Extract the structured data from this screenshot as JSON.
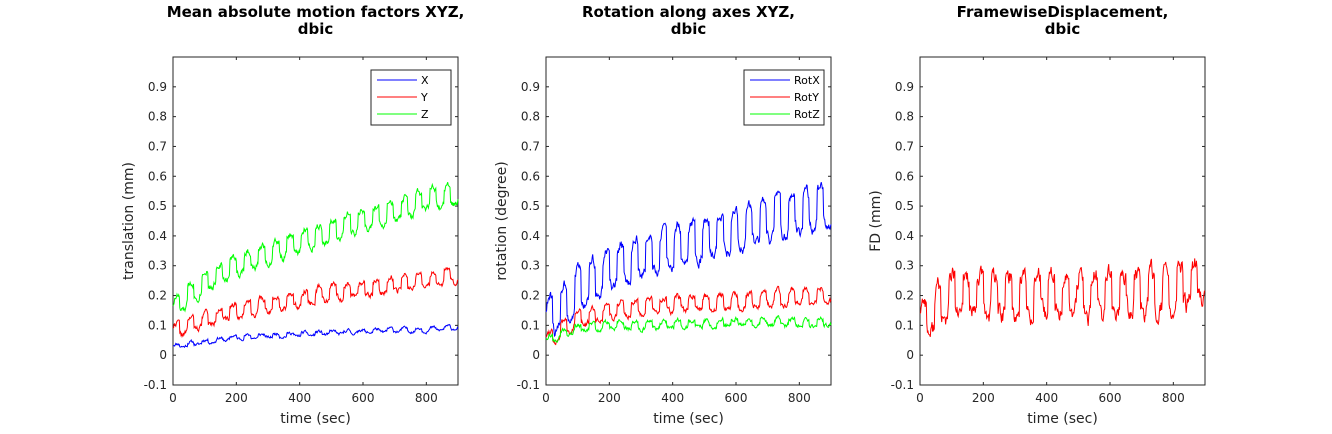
{
  "chart_data": [
    {
      "type": "line",
      "title": [
        "Mean absolute motion factors XYZ,",
        "dbic"
      ],
      "xlabel": "time (sec)",
      "ylabel": "translation (mm)",
      "xlim": [
        0,
        900
      ],
      "ylim": [
        -0.1,
        1.0
      ],
      "xticks": [
        "0",
        "200",
        "400",
        "600",
        "800"
      ],
      "xtick_values": [
        0,
        200,
        400,
        600,
        800
      ],
      "yticks": [
        "-0.1",
        "0",
        "0.1",
        "0.2",
        "0.3",
        "0.4",
        "0.5",
        "0.6",
        "0.7",
        "0.8",
        "0.9"
      ],
      "ytick_values": [
        -0.1,
        0,
        0.1,
        0.2,
        0.3,
        0.4,
        0.5,
        0.6,
        0.7,
        0.8,
        0.9
      ],
      "grid": false,
      "legend_position": "top-right",
      "series": [
        {
          "name": "X",
          "color": "#0000ff",
          "start": 0.03,
          "end": 0.09,
          "amp": 0.006,
          "noise": 0.004,
          "period": 45,
          "seed": 11,
          "points": [
            [
              0,
              0.03
            ],
            [
              100,
              0.045
            ],
            [
              200,
              0.06
            ],
            [
              300,
              0.065
            ],
            [
              400,
              0.07
            ],
            [
              500,
              0.075
            ],
            [
              600,
              0.08
            ],
            [
              700,
              0.085
            ],
            [
              800,
              0.085
            ],
            [
              900,
              0.095
            ]
          ]
        },
        {
          "name": "Y",
          "color": "#ff0000",
          "start": 0.08,
          "end": 0.27,
          "amp": 0.025,
          "noise": 0.008,
          "period": 45,
          "seed": 22,
          "points": [
            [
              0,
              0.08
            ],
            [
              100,
              0.12
            ],
            [
              200,
              0.15
            ],
            [
              300,
              0.17
            ],
            [
              400,
              0.19
            ],
            [
              500,
              0.21
            ],
            [
              600,
              0.22
            ],
            [
              700,
              0.24
            ],
            [
              800,
              0.25
            ],
            [
              900,
              0.27
            ]
          ]
        },
        {
          "name": "Z",
          "color": "#00ff00",
          "start": 0.15,
          "end": 0.54,
          "amp": 0.035,
          "noise": 0.01,
          "period": 45,
          "seed": 33,
          "points": [
            [
              0,
              0.15
            ],
            [
              100,
              0.25
            ],
            [
              200,
              0.3
            ],
            [
              300,
              0.34
            ],
            [
              400,
              0.38
            ],
            [
              500,
              0.42
            ],
            [
              600,
              0.45
            ],
            [
              700,
              0.48
            ],
            [
              800,
              0.52
            ],
            [
              900,
              0.54
            ]
          ]
        }
      ]
    },
    {
      "type": "line",
      "title": [
        "Rotation along axes XYZ,",
        "dbic"
      ],
      "xlabel": "time (sec)",
      "ylabel": "rotation (degree)",
      "xlim": [
        0,
        900
      ],
      "ylim": [
        -0.1,
        1.0
      ],
      "xticks": [
        "0",
        "200",
        "400",
        "600",
        "800"
      ],
      "xtick_values": [
        0,
        200,
        400,
        600,
        800
      ],
      "yticks": [
        "-0.1",
        "0",
        "0.1",
        "0.2",
        "0.3",
        "0.4",
        "0.5",
        "0.6",
        "0.7",
        "0.8",
        "0.9"
      ],
      "ytick_values": [
        -0.1,
        0,
        0.1,
        0.2,
        0.3,
        0.4,
        0.5,
        0.6,
        0.7,
        0.8,
        0.9
      ],
      "grid": false,
      "legend_position": "top-right",
      "series": [
        {
          "name": "RotX",
          "color": "#0000ff",
          "start": 0.11,
          "end": 0.5,
          "amp": 0.07,
          "noise": 0.015,
          "period": 45,
          "seed": 44,
          "points": [
            [
              0,
              0.11
            ],
            [
              100,
              0.22
            ],
            [
              200,
              0.28
            ],
            [
              300,
              0.33
            ],
            [
              400,
              0.36
            ],
            [
              500,
              0.39
            ],
            [
              600,
              0.42
            ],
            [
              700,
              0.45
            ],
            [
              800,
              0.48
            ],
            [
              900,
              0.5
            ]
          ]
        },
        {
          "name": "RotY",
          "color": "#ff0000",
          "start": 0.05,
          "end": 0.2,
          "amp": 0.025,
          "noise": 0.008,
          "period": 45,
          "seed": 55,
          "points": [
            [
              0,
              0.05
            ],
            [
              100,
              0.12
            ],
            [
              200,
              0.15
            ],
            [
              300,
              0.16
            ],
            [
              400,
              0.17
            ],
            [
              500,
              0.175
            ],
            [
              600,
              0.18
            ],
            [
              700,
              0.19
            ],
            [
              800,
              0.2
            ],
            [
              900,
              0.2
            ]
          ]
        },
        {
          "name": "RotZ",
          "color": "#00ff00",
          "start": 0.05,
          "end": 0.11,
          "amp": 0.012,
          "noise": 0.006,
          "period": 45,
          "seed": 66,
          "points": [
            [
              0,
              0.05
            ],
            [
              100,
              0.09
            ],
            [
              200,
              0.1
            ],
            [
              300,
              0.1
            ],
            [
              400,
              0.105
            ],
            [
              500,
              0.105
            ],
            [
              600,
              0.11
            ],
            [
              700,
              0.11
            ],
            [
              800,
              0.11
            ],
            [
              900,
              0.11
            ]
          ]
        }
      ]
    },
    {
      "type": "line",
      "title": [
        "FramewiseDisplacement,",
        "dbic"
      ],
      "xlabel": "time (sec)",
      "ylabel": "FD (mm)",
      "xlim": [
        0,
        900
      ],
      "ylim": [
        -0.1,
        1.0
      ],
      "xticks": [
        "0",
        "200",
        "400",
        "600",
        "800"
      ],
      "xtick_values": [
        0,
        200,
        400,
        600,
        800
      ],
      "yticks": [
        "-0.1",
        "0",
        "0.1",
        "0.2",
        "0.3",
        "0.4",
        "0.5",
        "0.6",
        "0.7",
        "0.8",
        "0.9"
      ],
      "ytick_values": [
        -0.1,
        0,
        0.1,
        0.2,
        0.3,
        0.4,
        0.5,
        0.6,
        0.7,
        0.8,
        0.9
      ],
      "grid": false,
      "legend_position": "none",
      "series": [
        {
          "color": "#ff0000",
          "start": 0.19,
          "end": 0.21,
          "amp": 0.07,
          "noise": 0.025,
          "period": 45,
          "seed": 77,
          "points": [
            [
              0,
              0.11
            ],
            [
              100,
              0.2
            ],
            [
              200,
              0.2
            ],
            [
              300,
              0.2
            ],
            [
              400,
              0.2
            ],
            [
              500,
              0.2
            ],
            [
              600,
              0.2
            ],
            [
              700,
              0.21
            ],
            [
              800,
              0.21
            ],
            [
              900,
              0.26
            ]
          ]
        }
      ]
    }
  ]
}
